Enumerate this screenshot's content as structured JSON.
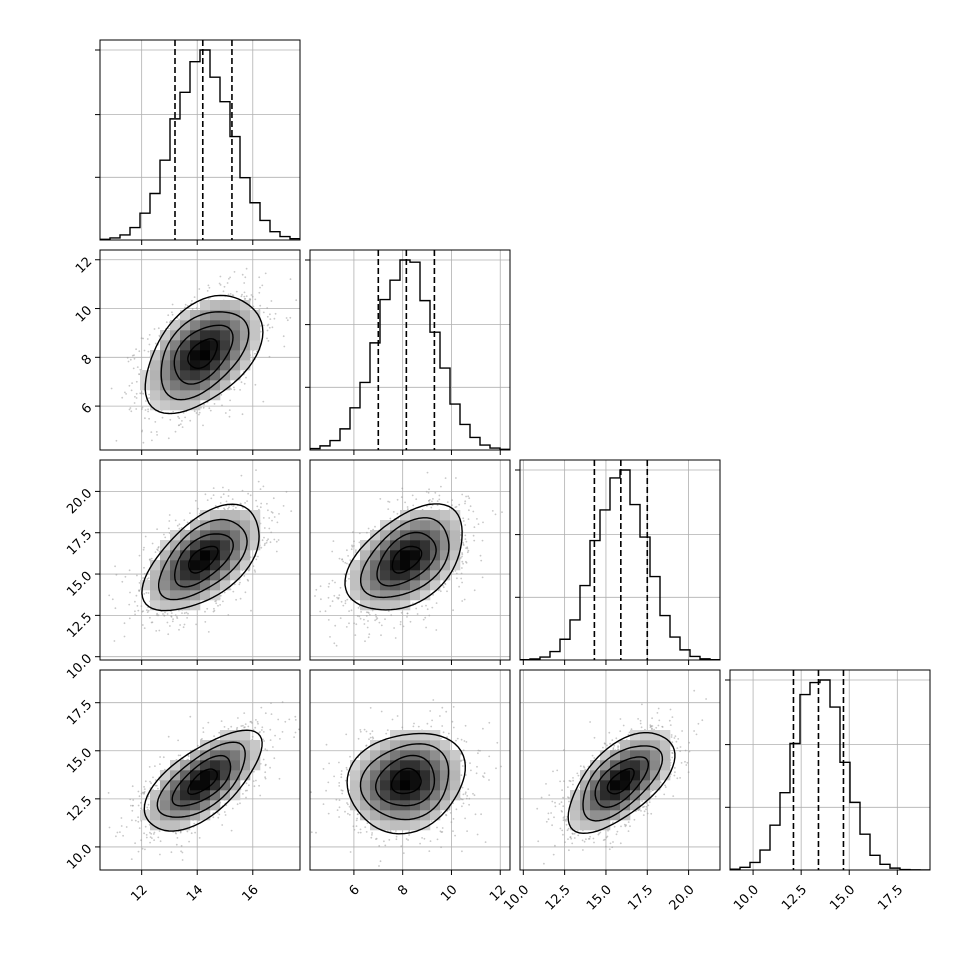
{
  "chart_data": {
    "type": "corner",
    "n_params": 4,
    "params": [
      {
        "mean": 14.2,
        "sd": 1.05,
        "q16": 13.2,
        "q50": 14.2,
        "q84": 15.25,
        "range": [
          10.5,
          17.7
        ],
        "ticks": [
          12,
          14,
          16
        ]
      },
      {
        "mean": 8.15,
        "sd": 1.2,
        "q16": 7.0,
        "q50": 8.15,
        "q84": 9.3,
        "range": [
          4.2,
          12.4
        ],
        "ticks": [
          6,
          8,
          10,
          12
        ]
      },
      {
        "mean": 15.9,
        "sd": 1.6,
        "q16": 14.3,
        "q50": 15.9,
        "q84": 17.5,
        "range": [
          9.8,
          21.9
        ],
        "ticks": [
          10.0,
          12.5,
          15.0,
          17.5,
          20.0
        ]
      },
      {
        "mean": 13.4,
        "sd": 1.3,
        "q16": 12.1,
        "q50": 13.4,
        "q84": 14.7,
        "range": [
          8.8,
          19.2
        ],
        "ticks": [
          10.0,
          12.5,
          15.0,
          17.5
        ]
      }
    ],
    "correlations": [
      {
        "i": 1,
        "j": 0,
        "r": 0.45
      },
      {
        "i": 2,
        "j": 0,
        "r": 0.55
      },
      {
        "i": 2,
        "j": 1,
        "r": 0.45
      },
      {
        "i": 3,
        "j": 0,
        "r": 0.65
      },
      {
        "i": 3,
        "j": 1,
        "r": 0.15
      },
      {
        "i": 3,
        "j": 2,
        "r": 0.6
      }
    ],
    "histogram_bins": 20,
    "histogram_peak_ticks_y": [
      0.33,
      0.66,
      1.0
    ],
    "quantiles": [
      0.16,
      0.5,
      0.84
    ],
    "contour_levels_sigma": [
      0.5,
      1.0,
      1.5,
      2.0
    ],
    "grid": true,
    "colors": {
      "line": "#000000",
      "scatter": "#9a9a9a",
      "grid": "#b0b0b0"
    }
  }
}
